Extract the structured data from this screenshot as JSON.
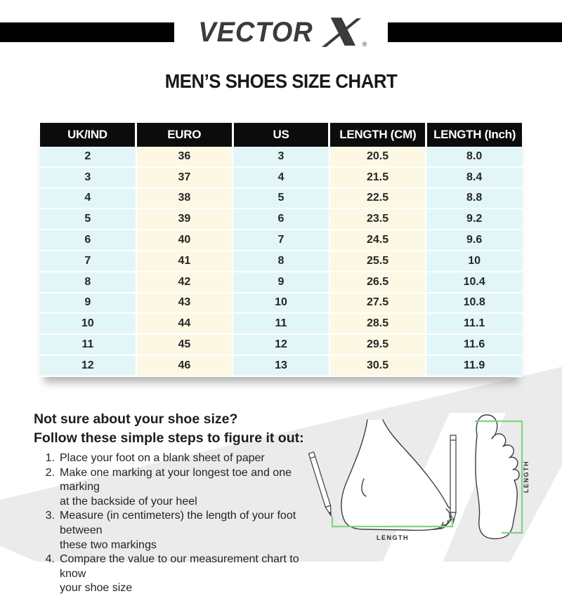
{
  "brand": {
    "logo_text": "VECTOR",
    "x_mark": "X",
    "registered_mark": "®"
  },
  "page_title": "MEN’S SHOES SIZE CHART",
  "size_table": {
    "columns": [
      "UK/IND",
      "EURO",
      "US",
      "LENGTH (CM)",
      "LENGTH (Inch)"
    ],
    "rows": [
      [
        "2",
        "36",
        "3",
        "20.5",
        "8.0"
      ],
      [
        "3",
        "37",
        "4",
        "21.5",
        "8.4"
      ],
      [
        "4",
        "38",
        "5",
        "22.5",
        "8.8"
      ],
      [
        "5",
        "39",
        "6",
        "23.5",
        "9.2"
      ],
      [
        "6",
        "40",
        "7",
        "24.5",
        "9.6"
      ],
      [
        "7",
        "41",
        "8",
        "25.5",
        "10"
      ],
      [
        "8",
        "42",
        "9",
        "26.5",
        "10.4"
      ],
      [
        "9",
        "43",
        "10",
        "27.5",
        "10.8"
      ],
      [
        "10",
        "44",
        "11",
        "28.5",
        "11.1"
      ],
      [
        "11",
        "45",
        "12",
        "29.5",
        "11.6"
      ],
      [
        "12",
        "46",
        "13",
        "30.5",
        "11.9"
      ]
    ]
  },
  "help": {
    "heading_line1": "Not sure about your shoe size?",
    "heading_line2": "Follow these simple steps to figure it out:",
    "steps": [
      {
        "num": "1.",
        "lines": [
          "Place your foot on a blank sheet of paper"
        ]
      },
      {
        "num": "2.",
        "lines": [
          "Make one marking at your longest toe and one marking",
          "at the backside of your heel"
        ]
      },
      {
        "num": "3.",
        "lines": [
          "Measure (in centimeters) the length of your foot between",
          "these two markings"
        ]
      },
      {
        "num": "4.",
        "lines": [
          "Compare the value to our measurement chart to know",
          "your shoe size"
        ]
      }
    ]
  },
  "diagram": {
    "side_label": "LENGTH",
    "sole_label": "LENGTH"
  },
  "colors": {
    "header_bg": "#0c0c0c",
    "cell_cyan": "#e2f6f8",
    "cell_cream": "#fdf8e4",
    "accent_green": "#82d282",
    "bar_black": "#000000",
    "swoosh_gray": "#ebebeb",
    "text_dark": "#262626"
  },
  "chart_data": {
    "type": "table",
    "title": "MEN’S SHOES SIZE CHART",
    "columns": [
      "UK/IND",
      "EURO",
      "US",
      "LENGTH (CM)",
      "LENGTH (Inch)"
    ],
    "rows": [
      [
        2,
        36,
        3,
        20.5,
        8.0
      ],
      [
        3,
        37,
        4,
        21.5,
        8.4
      ],
      [
        4,
        38,
        5,
        22.5,
        8.8
      ],
      [
        5,
        39,
        6,
        23.5,
        9.2
      ],
      [
        6,
        40,
        7,
        24.5,
        9.6
      ],
      [
        7,
        41,
        8,
        25.5,
        10
      ],
      [
        8,
        42,
        9,
        26.5,
        10.4
      ],
      [
        9,
        43,
        10,
        27.5,
        10.8
      ],
      [
        10,
        44,
        11,
        28.5,
        11.1
      ],
      [
        11,
        45,
        12,
        29.5,
        11.6
      ],
      [
        12,
        46,
        13,
        30.5,
        11.9
      ]
    ]
  }
}
